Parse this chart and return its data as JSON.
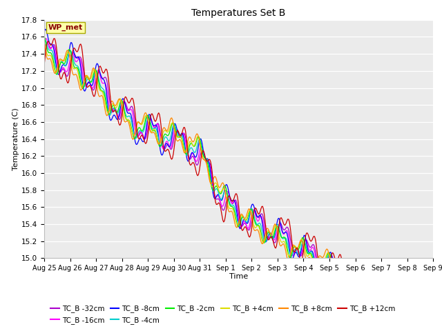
{
  "title": "Temperatures Set B",
  "xlabel": "Time",
  "ylabel": "Temperature (C)",
  "ylim": [
    15.0,
    17.8
  ],
  "yticks": [
    15.0,
    15.2,
    15.4,
    15.6,
    15.8,
    16.0,
    16.2,
    16.4,
    16.6,
    16.8,
    17.0,
    17.2,
    17.4,
    17.6,
    17.8
  ],
  "xtick_labels": [
    "Aug 25",
    "Aug 26",
    "Aug 27",
    "Aug 28",
    "Aug 29",
    "Aug 30",
    "Aug 31",
    "Sep 1",
    "Sep 2",
    "Sep 3",
    "Sep 4",
    "Sep 5",
    "Sep 6",
    "Sep 7",
    "Sep 8",
    "Sep 9"
  ],
  "wp_met_label": "WP_met",
  "wp_met_color": "#880000",
  "wp_met_bg": "#ffffaa",
  "wp_met_edge": "#aaaa00",
  "plot_bg": "#ebebeb",
  "fig_bg": "#ffffff",
  "grid_color": "#ffffff",
  "series": [
    {
      "label": "TC_B -32cm",
      "color": "#aa00cc"
    },
    {
      "label": "TC_B -16cm",
      "color": "#ff00ff"
    },
    {
      "label": "TC_B -8cm",
      "color": "#0000ff"
    },
    {
      "label": "TC_B -4cm",
      "color": "#00cccc"
    },
    {
      "label": "TC_B -2cm",
      "color": "#00ee00"
    },
    {
      "label": "TC_B +4cm",
      "color": "#dddd00"
    },
    {
      "label": "TC_B +8cm",
      "color": "#ff8800"
    },
    {
      "label": "TC_B +12cm",
      "color": "#cc0000"
    }
  ],
  "n_points": 480,
  "duration_days": 15
}
